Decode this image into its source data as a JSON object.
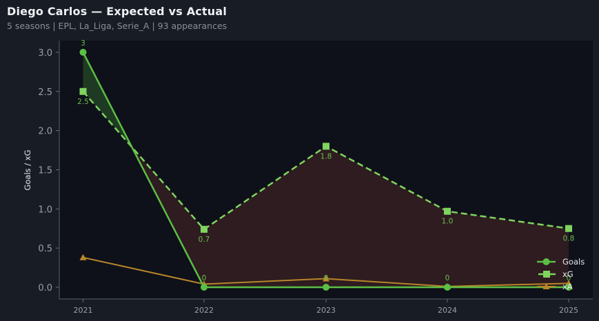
{
  "header": {
    "title": "Diego Carlos — Expected vs Actual",
    "subtitle": "5 seasons | EPL, La_Liga, Serie_A | 93 appearances"
  },
  "colors": {
    "goals": "#5cbf45",
    "xg": "#7fd45f",
    "xa": "#b8862a",
    "overperf_fill": "#1f3a22",
    "underperf_fill": "#2e1c20",
    "plot_bg": "#0e1119",
    "page_bg": "#181c24"
  },
  "chart_data": {
    "type": "line",
    "title": "Diego Carlos — Expected vs Actual",
    "subtitle": "5 seasons | EPL, La_Liga, Serie_A | 93 appearances",
    "xlabel": "",
    "ylabel": "Goals / xG",
    "categories": [
      "2021",
      "2022",
      "2023",
      "2024",
      "2025"
    ],
    "ylim": [
      -0.15,
      3.15
    ],
    "yticks": [
      0.0,
      0.5,
      1.0,
      1.5,
      2.0,
      2.5,
      3.0
    ],
    "ytick_labels": [
      "0.0",
      "0.5",
      "1.0",
      "1.5",
      "2.0",
      "2.5",
      "3.0"
    ],
    "grid": false,
    "legend_position": "lower right",
    "series": [
      {
        "name": "Goals",
        "values": [
          3,
          0,
          0,
          0,
          0
        ],
        "marker": "circle",
        "style": "solid",
        "labels": [
          "3",
          "0",
          "0",
          "0",
          "0"
        ]
      },
      {
        "name": "xG",
        "values": [
          2.5,
          0.74,
          1.8,
          0.97,
          0.75
        ],
        "marker": "square",
        "style": "dashed",
        "labels": [
          "2.5",
          "0.7",
          "1.8",
          "1.0",
          "0.8"
        ]
      },
      {
        "name": "xA",
        "values": [
          0.38,
          0.04,
          0.11,
          0.01,
          0.05
        ],
        "marker": "triangle",
        "style": "solid"
      }
    ],
    "fill_between": {
      "series_a": "Goals",
      "series_b": "xG",
      "above_color": "green",
      "below_color": "dark red"
    }
  },
  "legend": {
    "items": [
      {
        "label": "Goals"
      },
      {
        "label": "xG"
      },
      {
        "label": "xA"
      }
    ]
  }
}
